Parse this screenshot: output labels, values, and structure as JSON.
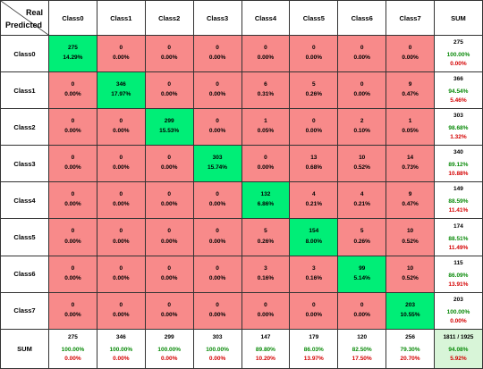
{
  "chart_data": {
    "type": "heatmap",
    "corner": {
      "col_label": "Real",
      "row_label": "Predicted"
    },
    "columns": [
      "Class0",
      "Class1",
      "Class2",
      "Class3",
      "Class4",
      "Class5",
      "Class6",
      "Class7",
      "SUM"
    ],
    "rows": [
      "Class0",
      "Class1",
      "Class2",
      "Class3",
      "Class4",
      "Class5",
      "Class6",
      "Class7",
      "SUM"
    ],
    "matrix": [
      [
        {
          "c": "275",
          "p": "14.29%"
        },
        {
          "c": "0",
          "p": "0.00%"
        },
        {
          "c": "0",
          "p": "0.00%"
        },
        {
          "c": "0",
          "p": "0.00%"
        },
        {
          "c": "0",
          "p": "0.00%"
        },
        {
          "c": "0",
          "p": "0.00%"
        },
        {
          "c": "0",
          "p": "0.00%"
        },
        {
          "c": "0",
          "p": "0.00%"
        }
      ],
      [
        {
          "c": "0",
          "p": "0.00%"
        },
        {
          "c": "346",
          "p": "17.97%"
        },
        {
          "c": "0",
          "p": "0.00%"
        },
        {
          "c": "0",
          "p": "0.00%"
        },
        {
          "c": "6",
          "p": "0.31%"
        },
        {
          "c": "5",
          "p": "0.26%"
        },
        {
          "c": "0",
          "p": "0.00%"
        },
        {
          "c": "9",
          "p": "0.47%"
        }
      ],
      [
        {
          "c": "0",
          "p": "0.00%"
        },
        {
          "c": "0",
          "p": "0.00%"
        },
        {
          "c": "299",
          "p": "15.53%"
        },
        {
          "c": "0",
          "p": "0.00%"
        },
        {
          "c": "1",
          "p": "0.05%"
        },
        {
          "c": "0",
          "p": "0.00%"
        },
        {
          "c": "2",
          "p": "0.10%"
        },
        {
          "c": "1",
          "p": "0.05%"
        }
      ],
      [
        {
          "c": "0",
          "p": "0.00%"
        },
        {
          "c": "0",
          "p": "0.00%"
        },
        {
          "c": "0",
          "p": "0.00%"
        },
        {
          "c": "303",
          "p": "15.74%"
        },
        {
          "c": "0",
          "p": "0.00%"
        },
        {
          "c": "13",
          "p": "0.68%"
        },
        {
          "c": "10",
          "p": "0.52%"
        },
        {
          "c": "14",
          "p": "0.73%"
        }
      ],
      [
        {
          "c": "0",
          "p": "0.00%"
        },
        {
          "c": "0",
          "p": "0.00%"
        },
        {
          "c": "0",
          "p": "0.00%"
        },
        {
          "c": "0",
          "p": "0.00%"
        },
        {
          "c": "132",
          "p": "6.86%"
        },
        {
          "c": "4",
          "p": "0.21%"
        },
        {
          "c": "4",
          "p": "0.21%"
        },
        {
          "c": "9",
          "p": "0.47%"
        }
      ],
      [
        {
          "c": "0",
          "p": "0.00%"
        },
        {
          "c": "0",
          "p": "0.00%"
        },
        {
          "c": "0",
          "p": "0.00%"
        },
        {
          "c": "0",
          "p": "0.00%"
        },
        {
          "c": "5",
          "p": "0.26%"
        },
        {
          "c": "154",
          "p": "8.00%"
        },
        {
          "c": "5",
          "p": "0.26%"
        },
        {
          "c": "10",
          "p": "0.52%"
        }
      ],
      [
        {
          "c": "0",
          "p": "0.00%"
        },
        {
          "c": "0",
          "p": "0.00%"
        },
        {
          "c": "0",
          "p": "0.00%"
        },
        {
          "c": "0",
          "p": "0.00%"
        },
        {
          "c": "3",
          "p": "0.16%"
        },
        {
          "c": "3",
          "p": "0.16%"
        },
        {
          "c": "99",
          "p": "5.14%"
        },
        {
          "c": "10",
          "p": "0.52%"
        }
      ],
      [
        {
          "c": "0",
          "p": "0.00%"
        },
        {
          "c": "0",
          "p": "0.00%"
        },
        {
          "c": "0",
          "p": "0.00%"
        },
        {
          "c": "0",
          "p": "0.00%"
        },
        {
          "c": "0",
          "p": "0.00%"
        },
        {
          "c": "0",
          "p": "0.00%"
        },
        {
          "c": "0",
          "p": "0.00%"
        },
        {
          "c": "203",
          "p": "10.55%"
        }
      ]
    ],
    "row_sums": [
      {
        "t": "275",
        "g": "100.00%",
        "r": "0.00%"
      },
      {
        "t": "366",
        "g": "94.54%",
        "r": "5.46%"
      },
      {
        "t": "303",
        "g": "98.68%",
        "r": "1.32%"
      },
      {
        "t": "340",
        "g": "89.12%",
        "r": "10.88%"
      },
      {
        "t": "149",
        "g": "88.59%",
        "r": "11.41%"
      },
      {
        "t": "174",
        "g": "88.51%",
        "r": "11.49%"
      },
      {
        "t": "115",
        "g": "86.09%",
        "r": "13.91%"
      },
      {
        "t": "203",
        "g": "100.00%",
        "r": "0.00%"
      }
    ],
    "col_sums": [
      {
        "t": "275",
        "g": "100.00%",
        "r": "0.00%"
      },
      {
        "t": "346",
        "g": "100.00%",
        "r": "0.00%"
      },
      {
        "t": "299",
        "g": "100.00%",
        "r": "0.00%"
      },
      {
        "t": "303",
        "g": "100.00%",
        "r": "0.00%"
      },
      {
        "t": "147",
        "g": "89.80%",
        "r": "10.20%"
      },
      {
        "t": "179",
        "g": "86.03%",
        "r": "13.97%"
      },
      {
        "t": "120",
        "g": "82.50%",
        "r": "17.50%"
      },
      {
        "t": "256",
        "g": "79.30%",
        "r": "20.70%"
      }
    ],
    "total": {
      "t": "1811 / 1925",
      "g": "94.08%",
      "r": "5.92%"
    }
  },
  "colors": {
    "diagonal": "#00ee77",
    "off_diagonal": "#f88a8a",
    "sum_total": "#d8f5d8",
    "accuracy_text": "#0a8a0a",
    "error_text": "#d40000"
  }
}
